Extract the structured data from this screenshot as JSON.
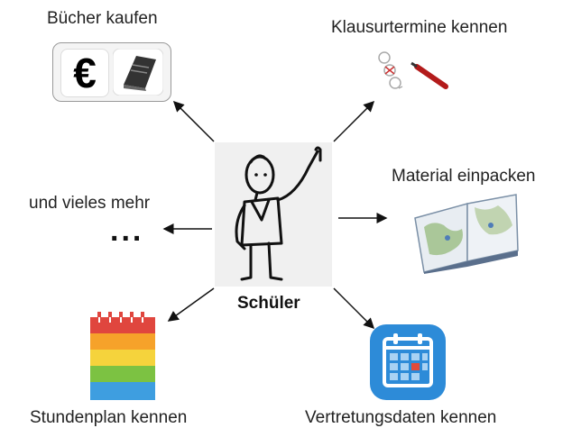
{
  "center": {
    "label": "Schüler"
  },
  "nodes": {
    "books": {
      "label": "Bücher kaufen",
      "icon": "euro-and-book-icon"
    },
    "exams": {
      "label": "Klausurtermine kennen",
      "icon": "test-sheet-pencil-icon"
    },
    "material": {
      "label": "Material einpacken",
      "icon": "atlas-icon"
    },
    "more": {
      "label": "und vieles mehr",
      "ellipsis": "..."
    },
    "schedule": {
      "label": "Stundenplan kennen",
      "icon": "rainbow-notepad-icon"
    },
    "substitution": {
      "label": "Vertretungsdaten kennen",
      "icon": "calendar-app-icon"
    }
  }
}
